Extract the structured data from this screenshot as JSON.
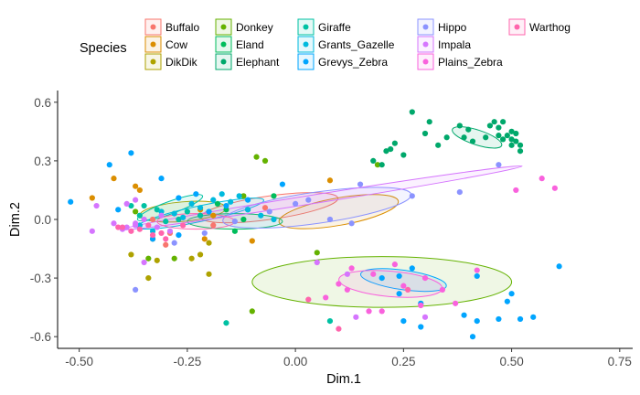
{
  "chart_data": {
    "type": "scatter",
    "title": "",
    "xlabel": "Dim.1",
    "ylabel": "Dim.2",
    "xlim": [
      -0.55,
      0.78
    ],
    "ylim": [
      -0.66,
      0.66
    ],
    "xticks": [
      -0.5,
      -0.25,
      0.0,
      0.25,
      0.5,
      0.75
    ],
    "xtick_labels": [
      "-0.50",
      "-0.25",
      "0.00",
      "0.25",
      "0.50",
      "0.75"
    ],
    "yticks": [
      -0.6,
      -0.3,
      0.0,
      0.3,
      0.6
    ],
    "ytick_labels": [
      "-0.6",
      "-0.3",
      "0.0",
      "0.3",
      "0.6"
    ],
    "grid": false,
    "legend": {
      "title": "Species",
      "position": "top",
      "columns": 5
    },
    "series": [
      {
        "name": "Buffalo",
        "color": "#F8766D",
        "ellipse": {
          "cx": -0.06,
          "cy": 0.06,
          "rx": 0.16,
          "ry": 0.06,
          "angle": 8
        },
        "points": [
          [
            -0.33,
            0.0
          ],
          [
            -0.19,
            -0.03
          ],
          [
            -0.07,
            0.06
          ],
          [
            -0.3,
            -0.13
          ],
          [
            -0.29,
            -0.07
          ]
        ]
      },
      {
        "name": "Cow",
        "color": "#DB8E00",
        "ellipse": {
          "cx": 0.1,
          "cy": 0.04,
          "rx": 0.14,
          "ry": 0.07,
          "angle": 10
        },
        "points": [
          [
            -0.37,
            0.17
          ],
          [
            -0.42,
            0.21
          ],
          [
            -0.36,
            0.15
          ],
          [
            -0.47,
            0.11
          ],
          [
            -0.22,
            0.05
          ],
          [
            -0.19,
            0.02
          ],
          [
            -0.21,
            -0.1
          ],
          [
            -0.33,
            -0.1
          ],
          [
            -0.1,
            -0.11
          ],
          [
            0.08,
            0.2
          ]
        ]
      },
      {
        "name": "DikDik",
        "color": "#AEA200",
        "ellipse": {
          "cx": -0.26,
          "cy": 0.04,
          "rx": 0.1,
          "ry": 0.05,
          "angle": 5
        },
        "points": [
          [
            -0.22,
            -0.18
          ],
          [
            -0.2,
            -0.28
          ],
          [
            -0.34,
            -0.3
          ],
          [
            -0.38,
            -0.18
          ],
          [
            -0.24,
            -0.2
          ],
          [
            -0.2,
            -0.12
          ],
          [
            -0.32,
            -0.21
          ]
        ]
      },
      {
        "name": "Donkey",
        "color": "#64B200",
        "ellipse": {
          "cx": 0.2,
          "cy": -0.32,
          "rx": 0.3,
          "ry": 0.13,
          "angle": 0
        },
        "points": [
          [
            -0.09,
            0.32
          ],
          [
            -0.07,
            0.3
          ],
          [
            -0.12,
            0.12
          ],
          [
            -0.1,
            -0.47
          ],
          [
            -0.37,
            0.04
          ],
          [
            -0.28,
            -0.2
          ],
          [
            0.05,
            -0.17
          ],
          [
            0.19,
            0.28
          ],
          [
            -0.34,
            -0.2
          ]
        ]
      },
      {
        "name": "Eland",
        "color": "#00BD5C",
        "ellipse": {
          "cx": -0.14,
          "cy": -0.01,
          "rx": 0.11,
          "ry": 0.04,
          "angle": 0
        },
        "points": [
          [
            -0.16,
            0.05
          ],
          [
            -0.11,
            0.05
          ],
          [
            -0.12,
            0.0
          ],
          [
            -0.14,
            -0.06
          ],
          [
            -0.18,
            0.08
          ],
          [
            -0.05,
            0.12
          ]
        ]
      },
      {
        "name": "Elephant",
        "color": "#00A86B",
        "ellipse": {
          "cx": 0.42,
          "cy": 0.42,
          "rx": 0.06,
          "ry": 0.038,
          "angle": -18
        },
        "points": [
          [
            0.27,
            0.55
          ],
          [
            0.3,
            0.44
          ],
          [
            0.33,
            0.38
          ],
          [
            0.35,
            0.42
          ],
          [
            0.38,
            0.48
          ],
          [
            0.4,
            0.46
          ],
          [
            0.41,
            0.4
          ],
          [
            0.44,
            0.42
          ],
          [
            0.45,
            0.48
          ],
          [
            0.47,
            0.43
          ],
          [
            0.48,
            0.41
          ],
          [
            0.5,
            0.45
          ],
          [
            0.48,
            0.5
          ],
          [
            0.51,
            0.4
          ],
          [
            0.52,
            0.38
          ],
          [
            0.5,
            0.38
          ],
          [
            0.52,
            0.35
          ],
          [
            0.49,
            0.43
          ],
          [
            0.46,
            0.5
          ],
          [
            0.23,
            0.39
          ],
          [
            0.25,
            0.33
          ],
          [
            0.22,
            0.36
          ],
          [
            0.18,
            0.3
          ],
          [
            0.2,
            0.28
          ],
          [
            0.21,
            0.35
          ],
          [
            0.31,
            0.5
          ],
          [
            0.47,
            0.47
          ],
          [
            0.51,
            0.44
          ],
          [
            0.5,
            0.41
          ],
          [
            0.39,
            0.42
          ]
        ]
      },
      {
        "name": "Giraffe",
        "color": "#00C1A3",
        "ellipse": {
          "cx": -0.29,
          "cy": 0.06,
          "rx": 0.08,
          "ry": 0.032,
          "angle": 20
        },
        "points": [
          [
            -0.38,
            0.07
          ],
          [
            -0.35,
            0.07
          ],
          [
            -0.32,
            0.05
          ],
          [
            -0.36,
            0.02
          ],
          [
            -0.3,
            -0.01
          ],
          [
            -0.16,
            -0.53
          ],
          [
            0.08,
            -0.52
          ],
          [
            -0.25,
            0.04
          ],
          [
            -0.22,
            0.02
          ],
          [
            -0.27,
            0.0
          ]
        ]
      },
      {
        "name": "Grants_Gazelle",
        "color": "#00BADE",
        "ellipse": {
          "cx": -0.22,
          "cy": 0.03,
          "rx": 0.15,
          "ry": 0.04,
          "angle": 12
        },
        "points": [
          [
            -0.31,
            0.04
          ],
          [
            -0.28,
            0.03
          ],
          [
            -0.26,
            0.01
          ],
          [
            -0.22,
            0.06
          ],
          [
            -0.19,
            0.1
          ],
          [
            -0.17,
            0.13
          ],
          [
            -0.15,
            0.09
          ],
          [
            -0.13,
            0.12
          ],
          [
            -0.05,
            0.0
          ],
          [
            -0.08,
            0.02
          ],
          [
            -0.11,
            0.05
          ],
          [
            -0.33,
            -0.06
          ],
          [
            -0.36,
            -0.03
          ],
          [
            -0.24,
            0.08
          ]
        ]
      },
      {
        "name": "Grevys_Zebra",
        "color": "#00A5FF",
        "ellipse": {
          "cx": 0.25,
          "cy": -0.31,
          "rx": 0.1,
          "ry": 0.05,
          "angle": -8
        },
        "points": [
          [
            -0.43,
            0.28
          ],
          [
            -0.38,
            0.34
          ],
          [
            -0.31,
            0.21
          ],
          [
            -0.52,
            0.09
          ],
          [
            -0.41,
            0.05
          ],
          [
            -0.33,
            -0.1
          ],
          [
            -0.27,
            -0.08
          ],
          [
            -0.23,
            0.13
          ],
          [
            -0.2,
            0.04
          ],
          [
            -0.03,
            0.18
          ],
          [
            0.25,
            -0.52
          ],
          [
            0.29,
            -0.55
          ],
          [
            0.41,
            -0.6
          ],
          [
            0.39,
            -0.49
          ],
          [
            0.42,
            -0.52
          ],
          [
            0.47,
            -0.51
          ],
          [
            0.52,
            -0.51
          ],
          [
            0.49,
            -0.42
          ],
          [
            0.61,
            -0.24
          ],
          [
            0.42,
            -0.29
          ],
          [
            0.24,
            -0.38
          ],
          [
            0.27,
            -0.25
          ],
          [
            0.29,
            -0.43
          ],
          [
            -0.27,
            0.11
          ],
          [
            -0.16,
            0.07
          ],
          [
            -0.11,
            0.1
          ],
          [
            0.24,
            -0.29
          ],
          [
            0.2,
            -0.3
          ],
          [
            0.5,
            -0.38
          ],
          [
            0.55,
            -0.5
          ]
        ]
      },
      {
        "name": "Hippo",
        "color": "#8B93FF",
        "ellipse": {
          "cx": 0.05,
          "cy": 0.06,
          "rx": 0.22,
          "ry": 0.08,
          "angle": 8
        },
        "points": [
          [
            -0.37,
            -0.36
          ],
          [
            -0.28,
            -0.12
          ],
          [
            -0.21,
            -0.07
          ],
          [
            -0.14,
            -0.01
          ],
          [
            -0.06,
            0.04
          ],
          [
            0.0,
            0.08
          ],
          [
            0.15,
            0.18
          ],
          [
            0.27,
            0.12
          ],
          [
            0.38,
            0.14
          ],
          [
            0.47,
            0.28
          ],
          [
            0.08,
            0.0
          ],
          [
            0.13,
            -0.02
          ],
          [
            0.03,
            0.1
          ]
        ]
      },
      {
        "name": "Impala",
        "color": "#D575FE",
        "ellipse": {
          "cx": 0.06,
          "cy": 0.11,
          "rx": 0.47,
          "ry": 0.022,
          "angle": 9
        },
        "points": [
          [
            -0.47,
            -0.06
          ],
          [
            -0.42,
            -0.02
          ],
          [
            -0.39,
            -0.04
          ],
          [
            -0.37,
            -0.02
          ],
          [
            -0.37,
            0.1
          ],
          [
            -0.39,
            0.08
          ],
          [
            -0.35,
            0.0
          ],
          [
            -0.32,
            -0.04
          ],
          [
            -0.31,
            0.02
          ],
          [
            -0.29,
            -0.06
          ],
          [
            -0.35,
            -0.22
          ],
          [
            0.14,
            -0.5
          ],
          [
            0.3,
            -0.5
          ],
          [
            -0.37,
            -0.03
          ],
          [
            -0.4,
            -0.05
          ],
          [
            -0.46,
            0.07
          ],
          [
            0.05,
            -0.22
          ],
          [
            0.12,
            -0.28
          ]
        ]
      },
      {
        "name": "Plains_Zebra",
        "color": "#F962DD",
        "ellipse": {
          "cx": 0.22,
          "cy": -0.33,
          "rx": 0.12,
          "ry": 0.065,
          "angle": -5
        },
        "points": [
          [
            0.13,
            -0.25
          ],
          [
            0.18,
            -0.28
          ],
          [
            0.25,
            -0.34
          ],
          [
            0.3,
            -0.3
          ],
          [
            0.34,
            -0.36
          ],
          [
            0.17,
            -0.47
          ],
          [
            0.2,
            -0.47
          ],
          [
            0.29,
            -0.44
          ],
          [
            0.37,
            -0.43
          ],
          [
            0.07,
            -0.4
          ],
          [
            0.12,
            -0.36
          ],
          [
            0.23,
            -0.23
          ],
          [
            0.57,
            0.21
          ],
          [
            0.6,
            0.16
          ],
          [
            0.51,
            0.15
          ],
          [
            0.1,
            -0.33
          ],
          [
            0.42,
            -0.26
          ]
        ]
      },
      {
        "name": "Warthog",
        "color": "#FF65AC",
        "ellipse": {
          "cx": -0.23,
          "cy": -0.01,
          "rx": 0.09,
          "ry": 0.04,
          "angle": 0
        },
        "points": [
          [
            -0.41,
            -0.04
          ],
          [
            -0.38,
            -0.06
          ],
          [
            -0.36,
            -0.05
          ],
          [
            -0.34,
            -0.03
          ],
          [
            -0.31,
            -0.07
          ],
          [
            -0.3,
            -0.1
          ],
          [
            -0.4,
            -0.04
          ],
          [
            0.03,
            -0.41
          ],
          [
            0.1,
            -0.56
          ],
          [
            0.26,
            -0.36
          ],
          [
            -0.33,
            -0.08
          ],
          [
            -0.26,
            -0.03
          ]
        ]
      }
    ]
  }
}
